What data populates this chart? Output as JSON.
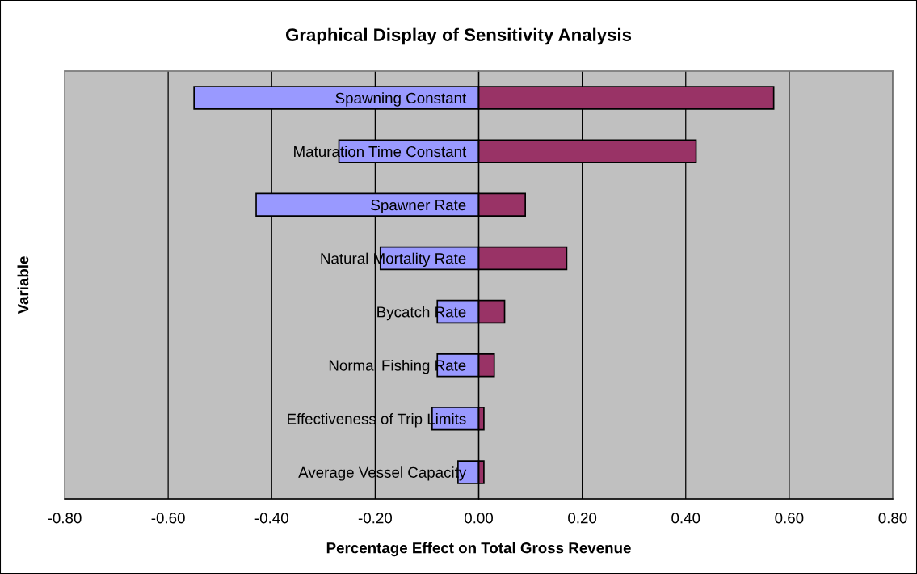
{
  "chart_data": {
    "type": "bar",
    "orientation": "horizontal",
    "stacked": true,
    "title": "Graphical Display of Sensitivity Analysis",
    "xlabel": "Percentage Effect on Total Gross Revenue",
    "ylabel": "Variable",
    "categories": [
      "Spawning Constant",
      "Maturation Time Constant",
      "Spawner Rate",
      "Natural Mortality Rate",
      "Bycatch Rate",
      "Normal Fishing Rate",
      "Effectiveness of Trip Limits",
      "Average Vessel Capacity"
    ],
    "series": [
      {
        "color": "#9999ff",
        "values": [
          -0.55,
          -0.27,
          -0.43,
          -0.19,
          -0.08,
          -0.08,
          -0.09,
          -0.04
        ]
      },
      {
        "color": "#993366",
        "values": [
          0.57,
          0.42,
          0.09,
          0.17,
          0.05,
          0.03,
          0.01,
          0.01
        ]
      }
    ],
    "xlim": [
      -0.8,
      0.8
    ],
    "xticks": [
      {
        "value": -0.8,
        "label": "-0.80"
      },
      {
        "value": -0.6,
        "label": "-0.60"
      },
      {
        "value": -0.4,
        "label": "-0.40"
      },
      {
        "value": -0.2,
        "label": "-0.20"
      },
      {
        "value": 0,
        "label": "0.00"
      },
      {
        "value": 0.2,
        "label": "0.20"
      },
      {
        "value": 0.4,
        "label": "0.40"
      },
      {
        "value": 0.6,
        "label": "0.60"
      },
      {
        "value": 0.8,
        "label": "0.80"
      }
    ],
    "grid": "x"
  }
}
